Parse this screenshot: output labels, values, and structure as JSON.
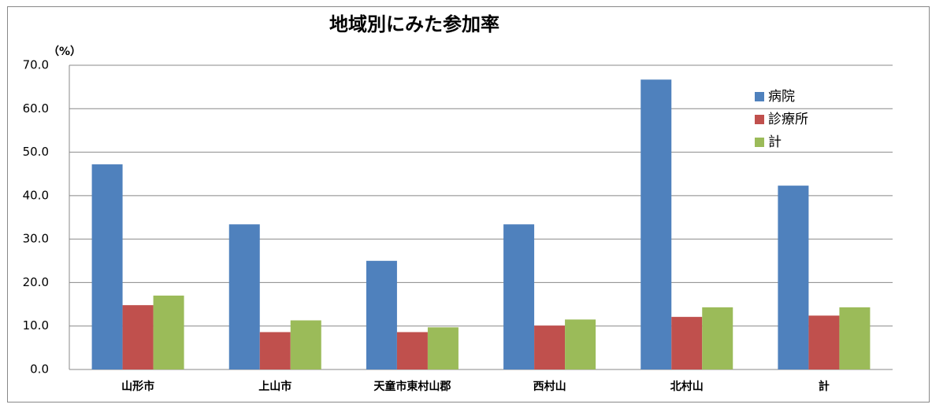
{
  "chart_data": {
    "type": "bar",
    "title": "地域別にみた参加率",
    "y_unit_label": "（%）",
    "categories": [
      "山形市",
      "上山市",
      "天童市東村山郡",
      "西村山",
      "北村山",
      "計"
    ],
    "series": [
      {
        "name": "病院",
        "color": "#4f81bd",
        "values": [
          47.2,
          33.4,
          25.0,
          33.4,
          66.7,
          42.3
        ]
      },
      {
        "name": "診療所",
        "color": "#c0504d",
        "values": [
          14.8,
          8.6,
          8.6,
          10.1,
          12.1,
          12.4
        ]
      },
      {
        "name": "計",
        "color": "#9bbb59",
        "values": [
          17.0,
          11.3,
          9.7,
          11.5,
          14.3,
          14.3
        ]
      }
    ],
    "ylim": [
      0,
      70
    ],
    "yticks": [
      {
        "value": 0,
        "label": "0.0"
      },
      {
        "value": 10,
        "label": "10.0"
      },
      {
        "value": 20,
        "label": "20.0"
      },
      {
        "value": 30,
        "label": "30.0"
      },
      {
        "value": 40,
        "label": "40.0"
      },
      {
        "value": 50,
        "label": "50.0"
      },
      {
        "value": 60,
        "label": "60.0"
      },
      {
        "value": 70,
        "label": "70.0"
      }
    ],
    "grid": true,
    "legend": "top-right"
  }
}
